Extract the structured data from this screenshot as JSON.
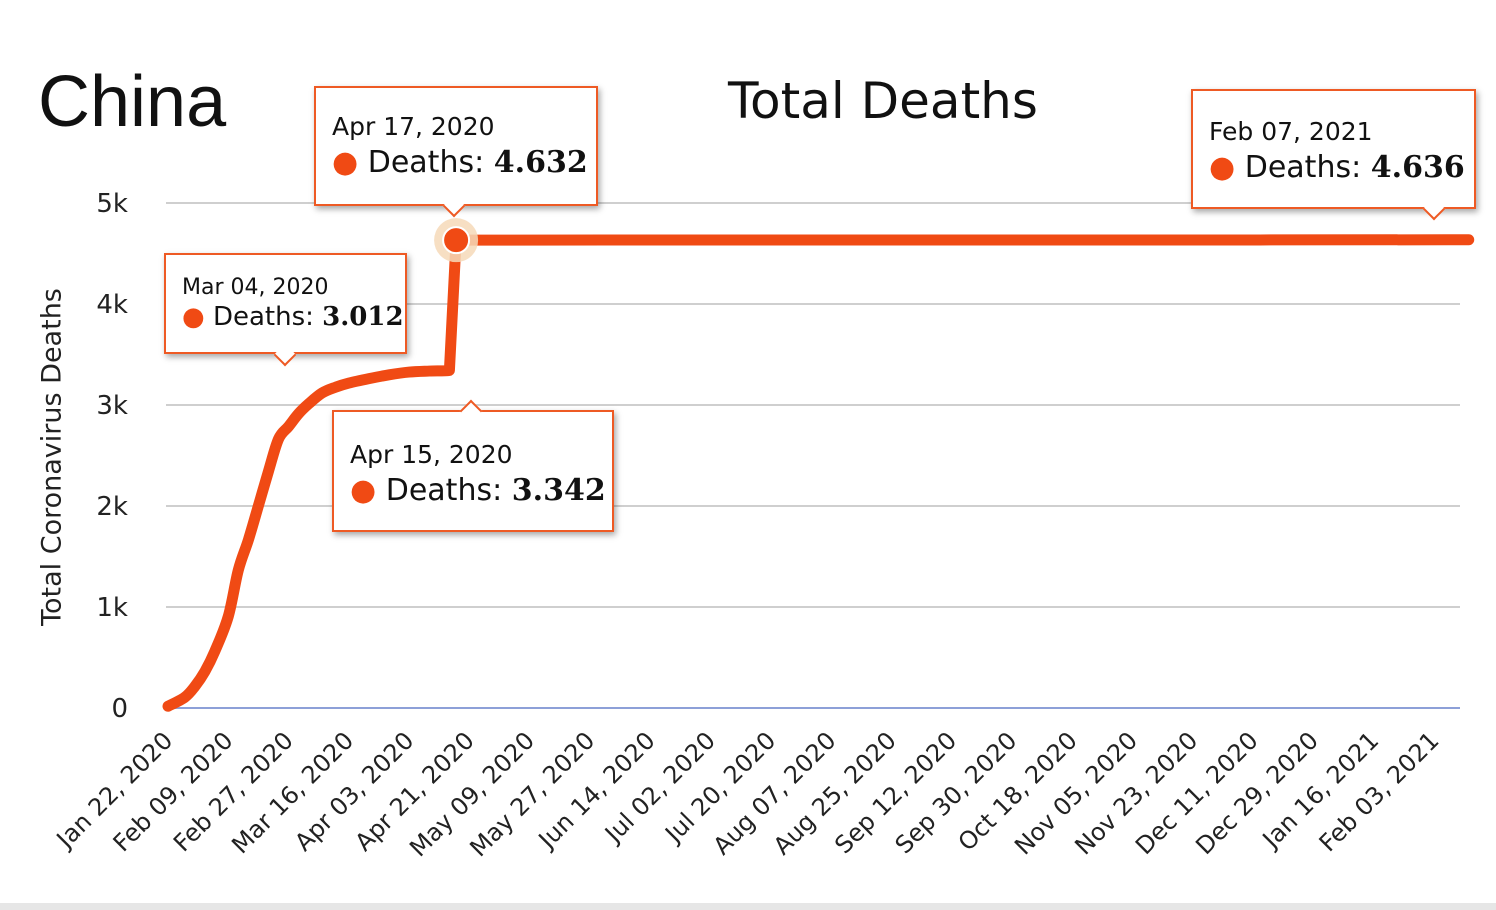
{
  "country": "China",
  "chart_data": {
    "type": "line",
    "title": "Total Deaths",
    "xlabel": "",
    "ylabel": "Total Coronavirus Deaths",
    "ylim": [
      0,
      5000
    ],
    "y_ticks": [
      0,
      1000,
      2000,
      3000,
      4000,
      5000
    ],
    "y_tick_labels": [
      "0",
      "1k",
      "2k",
      "3k",
      "4k",
      "5k"
    ],
    "x_tick_labels": [
      "Jan 22, 2020",
      "Feb 09, 2020",
      "Feb 27, 2020",
      "Mar 16, 2020",
      "Apr 03, 2020",
      "Apr 21, 2020",
      "May 09, 2020",
      "May 27, 2020",
      "Jun 14, 2020",
      "Jul 02, 2020",
      "Jul 20, 2020",
      "Aug 07, 2020",
      "Aug 25, 2020",
      "Sep 12, 2020",
      "Sep 30, 2020",
      "Oct 18, 2020",
      "Nov 05, 2020",
      "Nov 23, 2020",
      "Dec 11, 2020",
      "Dec 29, 2020",
      "Jan 16, 2021",
      "Feb 03, 2021"
    ],
    "grid": true,
    "color": "#f04a14",
    "series": [
      {
        "name": "Deaths",
        "points": [
          [
            "Jan 22, 2020",
            17
          ],
          [
            "Jan 27, 2020",
            106
          ],
          [
            "Jan 30, 2020",
            213
          ],
          [
            "Feb 02, 2020",
            361
          ],
          [
            "Feb 05, 2020",
            563
          ],
          [
            "Feb 09, 2020",
            908
          ],
          [
            "Feb 12, 2020",
            1367
          ],
          [
            "Feb 15, 2020",
            1665
          ],
          [
            "Feb 18, 2020",
            2004
          ],
          [
            "Feb 21, 2020",
            2345
          ],
          [
            "Feb 24, 2020",
            2664
          ],
          [
            "Feb 27, 2020",
            2788
          ],
          [
            "Mar 01, 2020",
            2915
          ],
          [
            "Mar 04, 2020",
            3012
          ],
          [
            "Mar 08, 2020",
            3119
          ],
          [
            "Mar 12, 2020",
            3176
          ],
          [
            "Mar 16, 2020",
            3217
          ],
          [
            "Mar 22, 2020",
            3261
          ],
          [
            "Mar 28, 2020",
            3299
          ],
          [
            "Apr 03, 2020",
            3326
          ],
          [
            "Apr 09, 2020",
            3336
          ],
          [
            "Apr 15, 2020",
            3342
          ],
          [
            "Apr 17, 2020",
            4632
          ],
          [
            "Jun 01, 2020",
            4634
          ],
          [
            "Sep 01, 2020",
            4634
          ],
          [
            "Dec 01, 2020",
            4634
          ],
          [
            "Feb 07, 2021",
            4636
          ]
        ]
      }
    ],
    "annotations": [
      {
        "date": "Apr 17, 2020",
        "label": "Deaths:",
        "value": "4.632"
      },
      {
        "date": "Mar 04, 2020",
        "label": "Deaths:",
        "value": "3.012"
      },
      {
        "date": "Apr 15, 2020",
        "label": "Deaths:",
        "value": "3.342"
      },
      {
        "date": "Feb 07, 2021",
        "label": "Deaths:",
        "value": "4.636"
      }
    ]
  }
}
